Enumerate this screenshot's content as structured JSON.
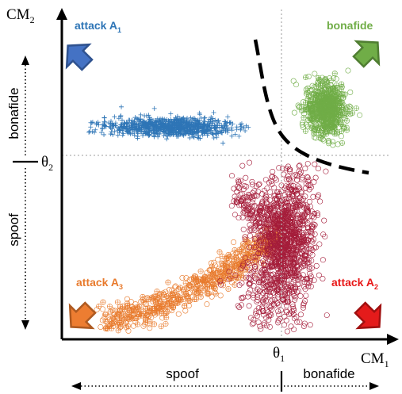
{
  "axes": {
    "x_label": "CM",
    "x_label_sub": "1",
    "y_label": "CM",
    "y_label_sub": "2",
    "x_threshold": "θ",
    "x_threshold_sub": "1",
    "y_threshold": "θ",
    "y_threshold_sub": "2"
  },
  "regions": {
    "x_spoof": "spoof",
    "x_bonafide": "bonafide",
    "y_spoof": "spoof",
    "y_bonafide": "bonafide"
  },
  "clusters": [
    {
      "key": "a1",
      "label": "attack A",
      "sub": "1",
      "color": "#2e75b6",
      "marker": "plus-marker"
    },
    {
      "key": "bonafide",
      "label": "bonafide",
      "sub": "",
      "color": "#70ad47",
      "marker": "circle-plus-marker"
    },
    {
      "key": "a3",
      "label": "attack A",
      "sub": "3",
      "color": "#e87a2c",
      "marker": "circle-plus-marker"
    },
    {
      "key": "a2",
      "label": "attack A",
      "sub": "2",
      "color": "#a51d3a",
      "marker": "circle-marker"
    }
  ],
  "colors": {
    "axis": "#000000",
    "guide": "#b0b0b0",
    "arrow_a1_fill": "#4472c4",
    "arrow_a1_stroke": "#2f528f",
    "arrow_bona_fill": "#70ad47",
    "arrow_bona_stroke": "#507e32",
    "arrow_a3_fill": "#ed7d31",
    "arrow_a3_stroke": "#ae5a21",
    "arrow_a2_fill": "#e41b1b",
    "arrow_a2_stroke": "#a01010",
    "label_a2": "#e81818"
  }
}
